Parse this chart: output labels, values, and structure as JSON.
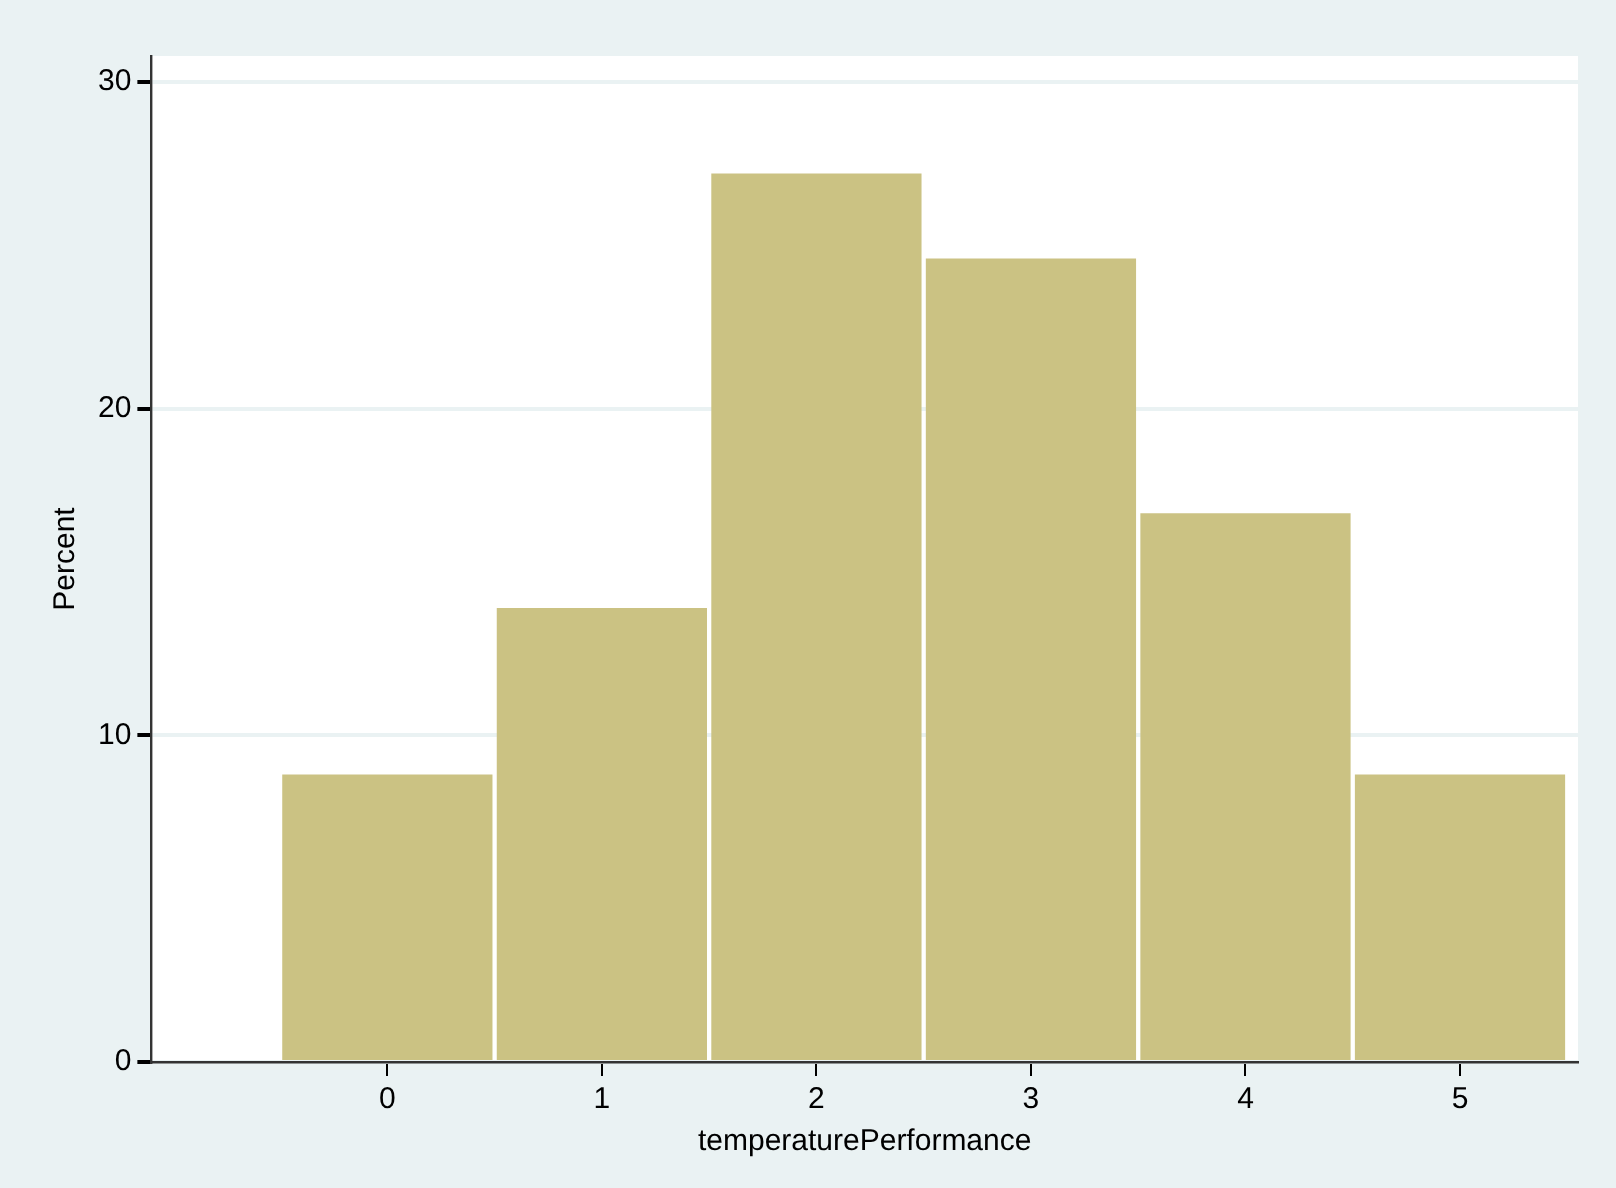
{
  "chart_data": {
    "type": "histogram",
    "xlabel": "temperaturePerformance",
    "ylabel": "Percent",
    "bins": [
      -0.5,
      0.5,
      1.5,
      2.5,
      3.5,
      4.5,
      5.5
    ],
    "values": [
      8.8,
      13.9,
      27.2,
      24.6,
      16.8,
      8.8
    ],
    "color": "#cbc283",
    "xlim": [
      -1.1,
      5.55
    ],
    "xticks": [
      0,
      1,
      2,
      3,
      4,
      5
    ],
    "ylim": [
      0,
      30.8
    ],
    "yticks": [
      0,
      10,
      20,
      30
    ],
    "grid": "y",
    "legend": false
  }
}
